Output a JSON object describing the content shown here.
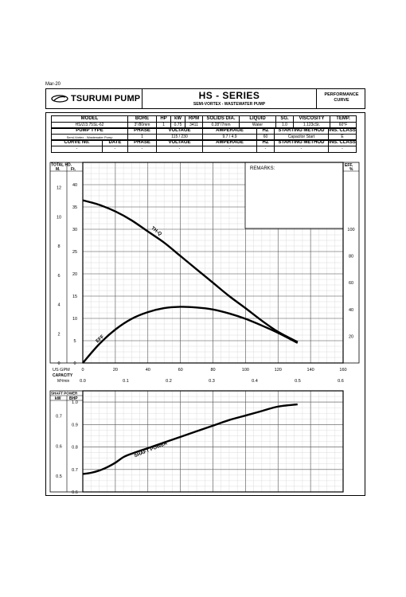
{
  "date_note": "Mar-20",
  "logo_text": "TSURUMI PUMP",
  "series_title": "HS - SERIES",
  "series_subtitle": "SEMI-VORTEX - WASTEWATER PUMP",
  "perf_line1": "PERFORMANCE",
  "perf_line2": "CURVE",
  "table1": {
    "headers": [
      "MODEL",
      "BORE",
      "HP",
      "kW",
      "RPM",
      "SOLIDS DIA.",
      "LIQUID",
      "SG.",
      "VISCOSITY",
      "TEMP."
    ],
    "values": [
      "HS/Z/3.75SL-62",
      "3\"/80mm",
      "1",
      "0.75",
      "3411",
      "0.28\"/7mm",
      "Water",
      "1.0",
      "1.123cSt.",
      "60°F"
    ]
  },
  "table2": {
    "headers": [
      "PUMP TYPE",
      "PHASE",
      "VOLTAGE",
      "AMPERAGE",
      "HZ",
      "STARTING METHOD",
      "INS. CLASS"
    ],
    "values": [
      "Semi-Vortex - Wastewater Pump",
      "1",
      "115 / 230",
      "9.7 / 4.9",
      "60",
      "Capacitor Start",
      "E"
    ]
  },
  "table3": {
    "headers": [
      "CURVE No.",
      "DATE",
      "PHASE",
      "VOLTAGE",
      "AMPERAGE",
      "HZ",
      "STARTING METHOD",
      "INS. CLASS"
    ],
    "values": [
      "-",
      "-",
      "-",
      "-",
      "-",
      "-",
      "-",
      "-"
    ]
  },
  "remarks_label": "REMARKS:",
  "chart_data": [
    {
      "type": "line",
      "title": "",
      "left_axis_header": "TOTAL HD.",
      "left_axis_units": [
        "M.",
        "Ft."
      ],
      "right_axis_header": "EFF.",
      "right_axis_unit": "%",
      "x_label_gpm": "US GPM",
      "x_label_capacity": "CAPACITY",
      "x_label_m3": "M³/min",
      "x_ticks_gpm": [
        0,
        20,
        40,
        60,
        80,
        100,
        120,
        140,
        160
      ],
      "x_ticks_m3": [
        "0.0",
        "0.1",
        "0.2",
        "0.3",
        "0.4",
        "0.5",
        "0.6"
      ],
      "m_ticks": [
        0,
        2,
        4,
        6,
        8,
        10,
        12
      ],
      "ft_ticks": [
        0,
        5,
        10,
        15,
        20,
        25,
        30,
        35,
        40
      ],
      "eff_ticks": [
        20,
        40,
        60,
        80,
        100
      ],
      "xlim_gpm": [
        0,
        160
      ],
      "ylim_ft": [
        0,
        45
      ],
      "eff_lim": [
        0,
        150
      ],
      "series": [
        {
          "name": "TH-Q",
          "x": [
            0,
            10,
            20,
            30,
            40,
            50,
            60,
            70,
            80,
            90,
            100,
            110,
            120,
            132
          ],
          "y": [
            36.5,
            35.5,
            34,
            32,
            29.5,
            27,
            24,
            21,
            18,
            15,
            12.3,
            9.5,
            7,
            4.7
          ]
        },
        {
          "name": "EFF.",
          "x": [
            0,
            10,
            20,
            30,
            40,
            50,
            60,
            70,
            80,
            90,
            100,
            110,
            120,
            132
          ],
          "y": [
            0,
            14,
            25,
            33,
            38,
            41,
            42,
            41.5,
            40,
            37,
            33,
            28,
            22.5,
            15
          ]
        }
      ]
    },
    {
      "type": "line",
      "title": "",
      "axis_header": "SHAFT POWER",
      "axis_units": [
        "kW",
        "BHP"
      ],
      "kw_ticks": [
        "0.5",
        "0.6",
        "0.7"
      ],
      "bhp_ticks": [
        "0.6",
        "0.7",
        "0.8",
        "0.9",
        "1.0"
      ],
      "xlim_gpm": [
        0,
        160
      ],
      "ylim_bhp": [
        0.6,
        1.05
      ],
      "series": [
        {
          "name": "SHAFT POWER",
          "x": [
            0,
            5,
            10,
            15,
            20,
            25,
            30,
            40,
            50,
            60,
            70,
            80,
            90,
            100,
            110,
            120,
            132
          ],
          "y": [
            0.68,
            0.685,
            0.695,
            0.71,
            0.73,
            0.755,
            0.77,
            0.795,
            0.82,
            0.845,
            0.87,
            0.895,
            0.92,
            0.94,
            0.96,
            0.98,
            0.99
          ]
        }
      ]
    }
  ]
}
